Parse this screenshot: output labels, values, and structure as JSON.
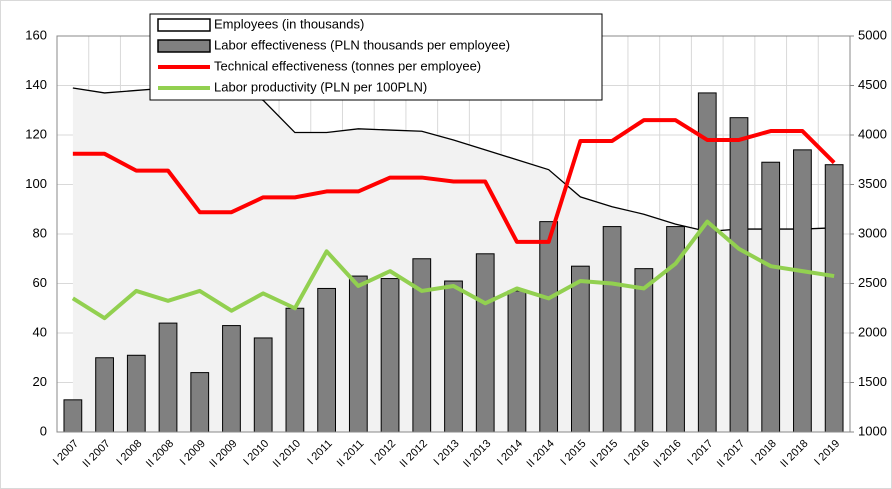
{
  "chart_data": {
    "type": "combo",
    "categories": [
      "I 2007",
      "II 2007",
      "I 2008",
      "II 2008",
      "I 2009",
      "II 2009",
      "I 2010",
      "II 2010",
      "I 2011",
      "II 2011",
      "I 2012",
      "II 2012",
      "I 2013",
      "II 2013",
      "I 2014",
      "II 2014",
      "I 2015",
      "II 2015",
      "I 2016",
      "II 2016",
      "I 2017",
      "II 2017",
      "I 2018",
      "II 2018",
      "I 2019"
    ],
    "series": [
      {
        "name": "Employees (in thousands)",
        "type": "area",
        "color": "#f2f2f2",
        "values": [
          139,
          137,
          138,
          139,
          139,
          139,
          134,
          121,
          121,
          122.5,
          122,
          121.5,
          118,
          114,
          110,
          106,
          95,
          91,
          88,
          84,
          81,
          82,
          82,
          82,
          82.5
        ]
      },
      {
        "name": "Labor effectiveness (PLN thousands per employee)",
        "type": "bar",
        "color": "#808080",
        "values": [
          13,
          30,
          31,
          44,
          24,
          43,
          38,
          50,
          58,
          63,
          62,
          70,
          61,
          72,
          57,
          85,
          67,
          83,
          66,
          83,
          137,
          127,
          109,
          114,
          108
        ]
      },
      {
        "name": "Technical effectiveness (tonnes per employee)",
        "type": "line",
        "axis": "y2",
        "color": "#ff0000",
        "values": [
          3810,
          3810,
          3640,
          3640,
          3220,
          3220,
          3370,
          3370,
          3430,
          3430,
          3570,
          3570,
          3530,
          3530,
          2920,
          2920,
          3940,
          3940,
          4150,
          4150,
          3950,
          3950,
          4040,
          4040,
          3720
        ]
      },
      {
        "name": "Labor productivity (PLN per 100PLN)",
        "type": "line",
        "color": "#92d050",
        "values": [
          54,
          46,
          57,
          53,
          57,
          49,
          56,
          50,
          73,
          59,
          65,
          57,
          59,
          52,
          58,
          54,
          61,
          60,
          58,
          68,
          85,
          74,
          67,
          65,
          63
        ]
      }
    ],
    "ylim": [
      0,
      160
    ],
    "yticks": [
      0,
      20,
      40,
      60,
      80,
      100,
      120,
      140,
      160
    ],
    "y2lim": [
      1000,
      5000
    ],
    "y2ticks": [
      1000,
      1500,
      2000,
      2500,
      3000,
      3500,
      4000,
      4500,
      5000
    ],
    "grid": true
  }
}
